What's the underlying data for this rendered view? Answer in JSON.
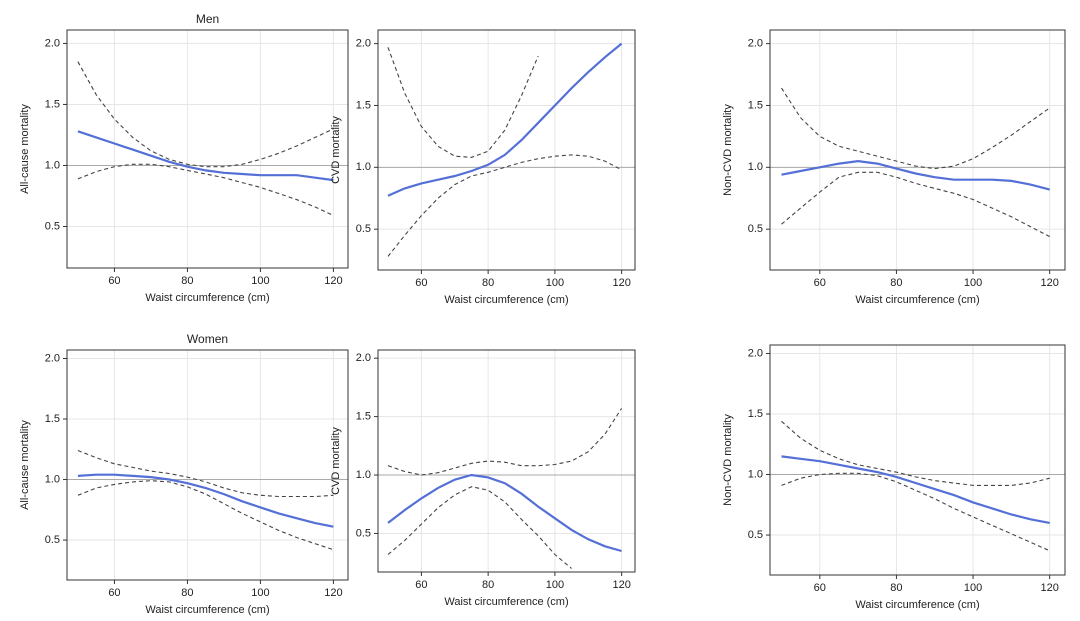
{
  "chart_data": [
    {
      "type": "line",
      "title": "Men",
      "y_label": "All-cause mortality",
      "x_label": "Waist circumference (cm)",
      "x": [
        50,
        55,
        60,
        65,
        70,
        75,
        80,
        85,
        90,
        95,
        100,
        105,
        110,
        115,
        120
      ],
      "xlim": [
        47,
        124
      ],
      "xticks": [
        60,
        80,
        100,
        120
      ],
      "ylim": [
        0.16,
        2.11
      ],
      "yticks": [
        {
          "value": 0.5,
          "label": "0.5"
        },
        {
          "value": 1,
          "label": "1.0"
        },
        {
          "value": 1.5,
          "label": "1.5"
        },
        {
          "value": 2,
          "label": "2.0"
        }
      ],
      "reference_line": 1,
      "grid": true,
      "series": [
        {
          "color": "#5470d6",
          "dash": false,
          "values": [
            1.28,
            1.23,
            1.18,
            1.13,
            1.08,
            1.03,
            0.99,
            0.96,
            0.94,
            0.93,
            0.92,
            0.92,
            0.92,
            0.9,
            0.88
          ]
        },
        {
          "color": "#444444",
          "dash": true,
          "values": [
            1.85,
            1.58,
            1.38,
            1.23,
            1.12,
            1.05,
            1.01,
            0.99,
            0.99,
            1.01,
            1.05,
            1.1,
            1.16,
            1.23,
            1.3
          ]
        },
        {
          "color": "#444444",
          "dash": true,
          "values": [
            0.89,
            0.95,
            0.99,
            1.01,
            1.01,
            0.99,
            0.96,
            0.93,
            0.9,
            0.86,
            0.82,
            0.77,
            0.72,
            0.66,
            0.59
          ]
        }
      ]
    },
    {
      "type": "line",
      "y_label": "CVD mortality",
      "x_label": "Waist circumference (cm)",
      "x": [
        50,
        55,
        60,
        65,
        70,
        75,
        80,
        85,
        90,
        95,
        100,
        105,
        110,
        115,
        120
      ],
      "xlim": [
        47,
        124
      ],
      "xticks": [
        60,
        80,
        100,
        120
      ],
      "ylim": [
        0.17,
        2.11
      ],
      "yticks": [
        {
          "value": 0.5,
          "label": "0.5"
        },
        {
          "value": 1,
          "label": "1.0"
        },
        {
          "value": 1.5,
          "label": "1.5"
        },
        {
          "value": 2,
          "label": "2.0"
        }
      ],
      "reference_line": 1,
      "grid": true,
      "series": [
        {
          "color": "#5470d6",
          "dash": false,
          "values": [
            0.77,
            0.83,
            0.87,
            0.9,
            0.93,
            0.97,
            1.02,
            1.1,
            1.22,
            1.36,
            1.5,
            1.64,
            1.77,
            1.89,
            2.0
          ]
        },
        {
          "color": "#444444",
          "dash": true,
          "values": [
            1.97,
            1.6,
            1.33,
            1.17,
            1.09,
            1.08,
            1.13,
            1.3,
            1.58,
            1.9,
            null,
            null,
            null,
            null,
            null
          ]
        },
        {
          "color": "#444444",
          "dash": true,
          "values": [
            0.28,
            0.45,
            0.61,
            0.75,
            0.86,
            0.93,
            0.96,
            1.0,
            1.04,
            1.07,
            1.09,
            1.1,
            1.09,
            1.05,
            0.98
          ]
        }
      ]
    },
    {
      "type": "line",
      "y_label": "Non-CVD mortality",
      "x_label": "Waist circumference (cm)",
      "x": [
        50,
        55,
        60,
        65,
        70,
        75,
        80,
        85,
        90,
        95,
        100,
        105,
        110,
        115,
        120
      ],
      "xlim": [
        47,
        124
      ],
      "xticks": [
        60,
        80,
        100,
        120
      ],
      "ylim": [
        0.17,
        2.11
      ],
      "yticks": [
        {
          "value": 0.5,
          "label": "0.5"
        },
        {
          "value": 1,
          "label": "1.0"
        },
        {
          "value": 1.5,
          "label": "1.5"
        },
        {
          "value": 2,
          "label": "2.0"
        }
      ],
      "reference_line": 1,
      "grid": true,
      "series": [
        {
          "color": "#5470d6",
          "dash": false,
          "values": [
            0.94,
            0.97,
            1.0,
            1.03,
            1.05,
            1.03,
            0.99,
            0.95,
            0.92,
            0.9,
            0.9,
            0.9,
            0.89,
            0.86,
            0.82
          ]
        },
        {
          "color": "#444444",
          "dash": true,
          "values": [
            1.64,
            1.4,
            1.25,
            1.17,
            1.13,
            1.09,
            1.05,
            1.01,
            0.99,
            1.01,
            1.07,
            1.16,
            1.26,
            1.37,
            1.48
          ]
        },
        {
          "color": "#444444",
          "dash": true,
          "values": [
            0.54,
            0.67,
            0.8,
            0.92,
            0.96,
            0.96,
            0.92,
            0.87,
            0.83,
            0.79,
            0.74,
            0.67,
            0.6,
            0.52,
            0.44
          ]
        }
      ]
    },
    {
      "type": "line",
      "title": "Women",
      "y_label": "All-cause mortality",
      "x_label": "Waist circumference (cm)",
      "x": [
        50,
        55,
        60,
        65,
        70,
        75,
        80,
        85,
        90,
        95,
        100,
        105,
        110,
        115,
        120
      ],
      "xlim": [
        47,
        124
      ],
      "xticks": [
        60,
        80,
        100,
        120
      ],
      "ylim": [
        0.17,
        2.07
      ],
      "yticks": [
        {
          "value": 0.5,
          "label": "0.5"
        },
        {
          "value": 1,
          "label": "1.0"
        },
        {
          "value": 1.5,
          "label": "1.5"
        },
        {
          "value": 2,
          "label": "2.0"
        }
      ],
      "reference_line": 1,
      "grid": true,
      "series": [
        {
          "color": "#5470d6",
          "dash": false,
          "values": [
            1.03,
            1.04,
            1.04,
            1.03,
            1.02,
            1.0,
            0.97,
            0.93,
            0.88,
            0.82,
            0.77,
            0.72,
            0.68,
            0.64,
            0.61
          ]
        },
        {
          "color": "#444444",
          "dash": true,
          "values": [
            1.24,
            1.18,
            1.13,
            1.1,
            1.07,
            1.05,
            1.02,
            0.98,
            0.93,
            0.89,
            0.87,
            0.86,
            0.86,
            0.86,
            0.87
          ]
        },
        {
          "color": "#444444",
          "dash": true,
          "values": [
            0.87,
            0.93,
            0.96,
            0.98,
            0.99,
            0.98,
            0.94,
            0.88,
            0.8,
            0.72,
            0.65,
            0.58,
            0.52,
            0.47,
            0.42
          ]
        }
      ]
    },
    {
      "type": "line",
      "y_label": "CVD mortality",
      "x_label": "Waist circumference (cm)",
      "x": [
        50,
        55,
        60,
        65,
        70,
        75,
        80,
        85,
        90,
        95,
        100,
        105,
        110,
        115,
        120
      ],
      "xlim": [
        47,
        124
      ],
      "xticks": [
        60,
        80,
        100,
        120
      ],
      "ylim": [
        0.17,
        2.07
      ],
      "yticks": [
        {
          "value": 0.5,
          "label": "0.5"
        },
        {
          "value": 1,
          "label": "1.0"
        },
        {
          "value": 1.5,
          "label": "1.5"
        },
        {
          "value": 2,
          "label": "2.0"
        }
      ],
      "reference_line": 1,
      "grid": true,
      "series": [
        {
          "color": "#5470d6",
          "dash": false,
          "values": [
            0.59,
            0.7,
            0.8,
            0.89,
            0.96,
            1.0,
            0.98,
            0.93,
            0.84,
            0.73,
            0.63,
            0.53,
            0.45,
            0.39,
            0.35
          ]
        },
        {
          "color": "#444444",
          "dash": true,
          "values": [
            1.08,
            1.03,
            1.0,
            1.02,
            1.06,
            1.1,
            1.12,
            1.11,
            1.08,
            1.08,
            1.09,
            1.12,
            1.2,
            1.35,
            1.57
          ]
        },
        {
          "color": "#444444",
          "dash": true,
          "values": [
            0.32,
            0.44,
            0.58,
            0.72,
            0.83,
            0.9,
            0.87,
            0.77,
            0.62,
            0.48,
            0.32,
            0.2,
            null,
            null,
            null
          ]
        }
      ]
    },
    {
      "type": "line",
      "y_label": "Non-CVD mortality",
      "x_label": "Waist circumference (cm)",
      "x": [
        50,
        55,
        60,
        65,
        70,
        75,
        80,
        85,
        90,
        95,
        100,
        105,
        110,
        115,
        120
      ],
      "xlim": [
        47,
        124
      ],
      "xticks": [
        60,
        80,
        100,
        120
      ],
      "ylim": [
        0.17,
        2.07
      ],
      "yticks": [
        {
          "value": 0.5,
          "label": "0.5"
        },
        {
          "value": 1,
          "label": "1.0"
        },
        {
          "value": 1.5,
          "label": "1.5"
        },
        {
          "value": 2,
          "label": "2.0"
        }
      ],
      "reference_line": 1,
      "grid": true,
      "series": [
        {
          "color": "#5470d6",
          "dash": false,
          "values": [
            1.15,
            1.13,
            1.11,
            1.08,
            1.05,
            1.02,
            0.98,
            0.93,
            0.88,
            0.83,
            0.77,
            0.72,
            0.67,
            0.63,
            0.6
          ]
        },
        {
          "color": "#444444",
          "dash": true,
          "values": [
            1.44,
            1.3,
            1.2,
            1.13,
            1.08,
            1.05,
            1.02,
            0.98,
            0.95,
            0.93,
            0.91,
            0.91,
            0.91,
            0.93,
            0.97
          ]
        },
        {
          "color": "#444444",
          "dash": true,
          "values": [
            0.91,
            0.97,
            1.0,
            1.01,
            1.01,
            0.99,
            0.94,
            0.87,
            0.8,
            0.72,
            0.65,
            0.58,
            0.51,
            0.44,
            0.37
          ]
        }
      ]
    }
  ]
}
